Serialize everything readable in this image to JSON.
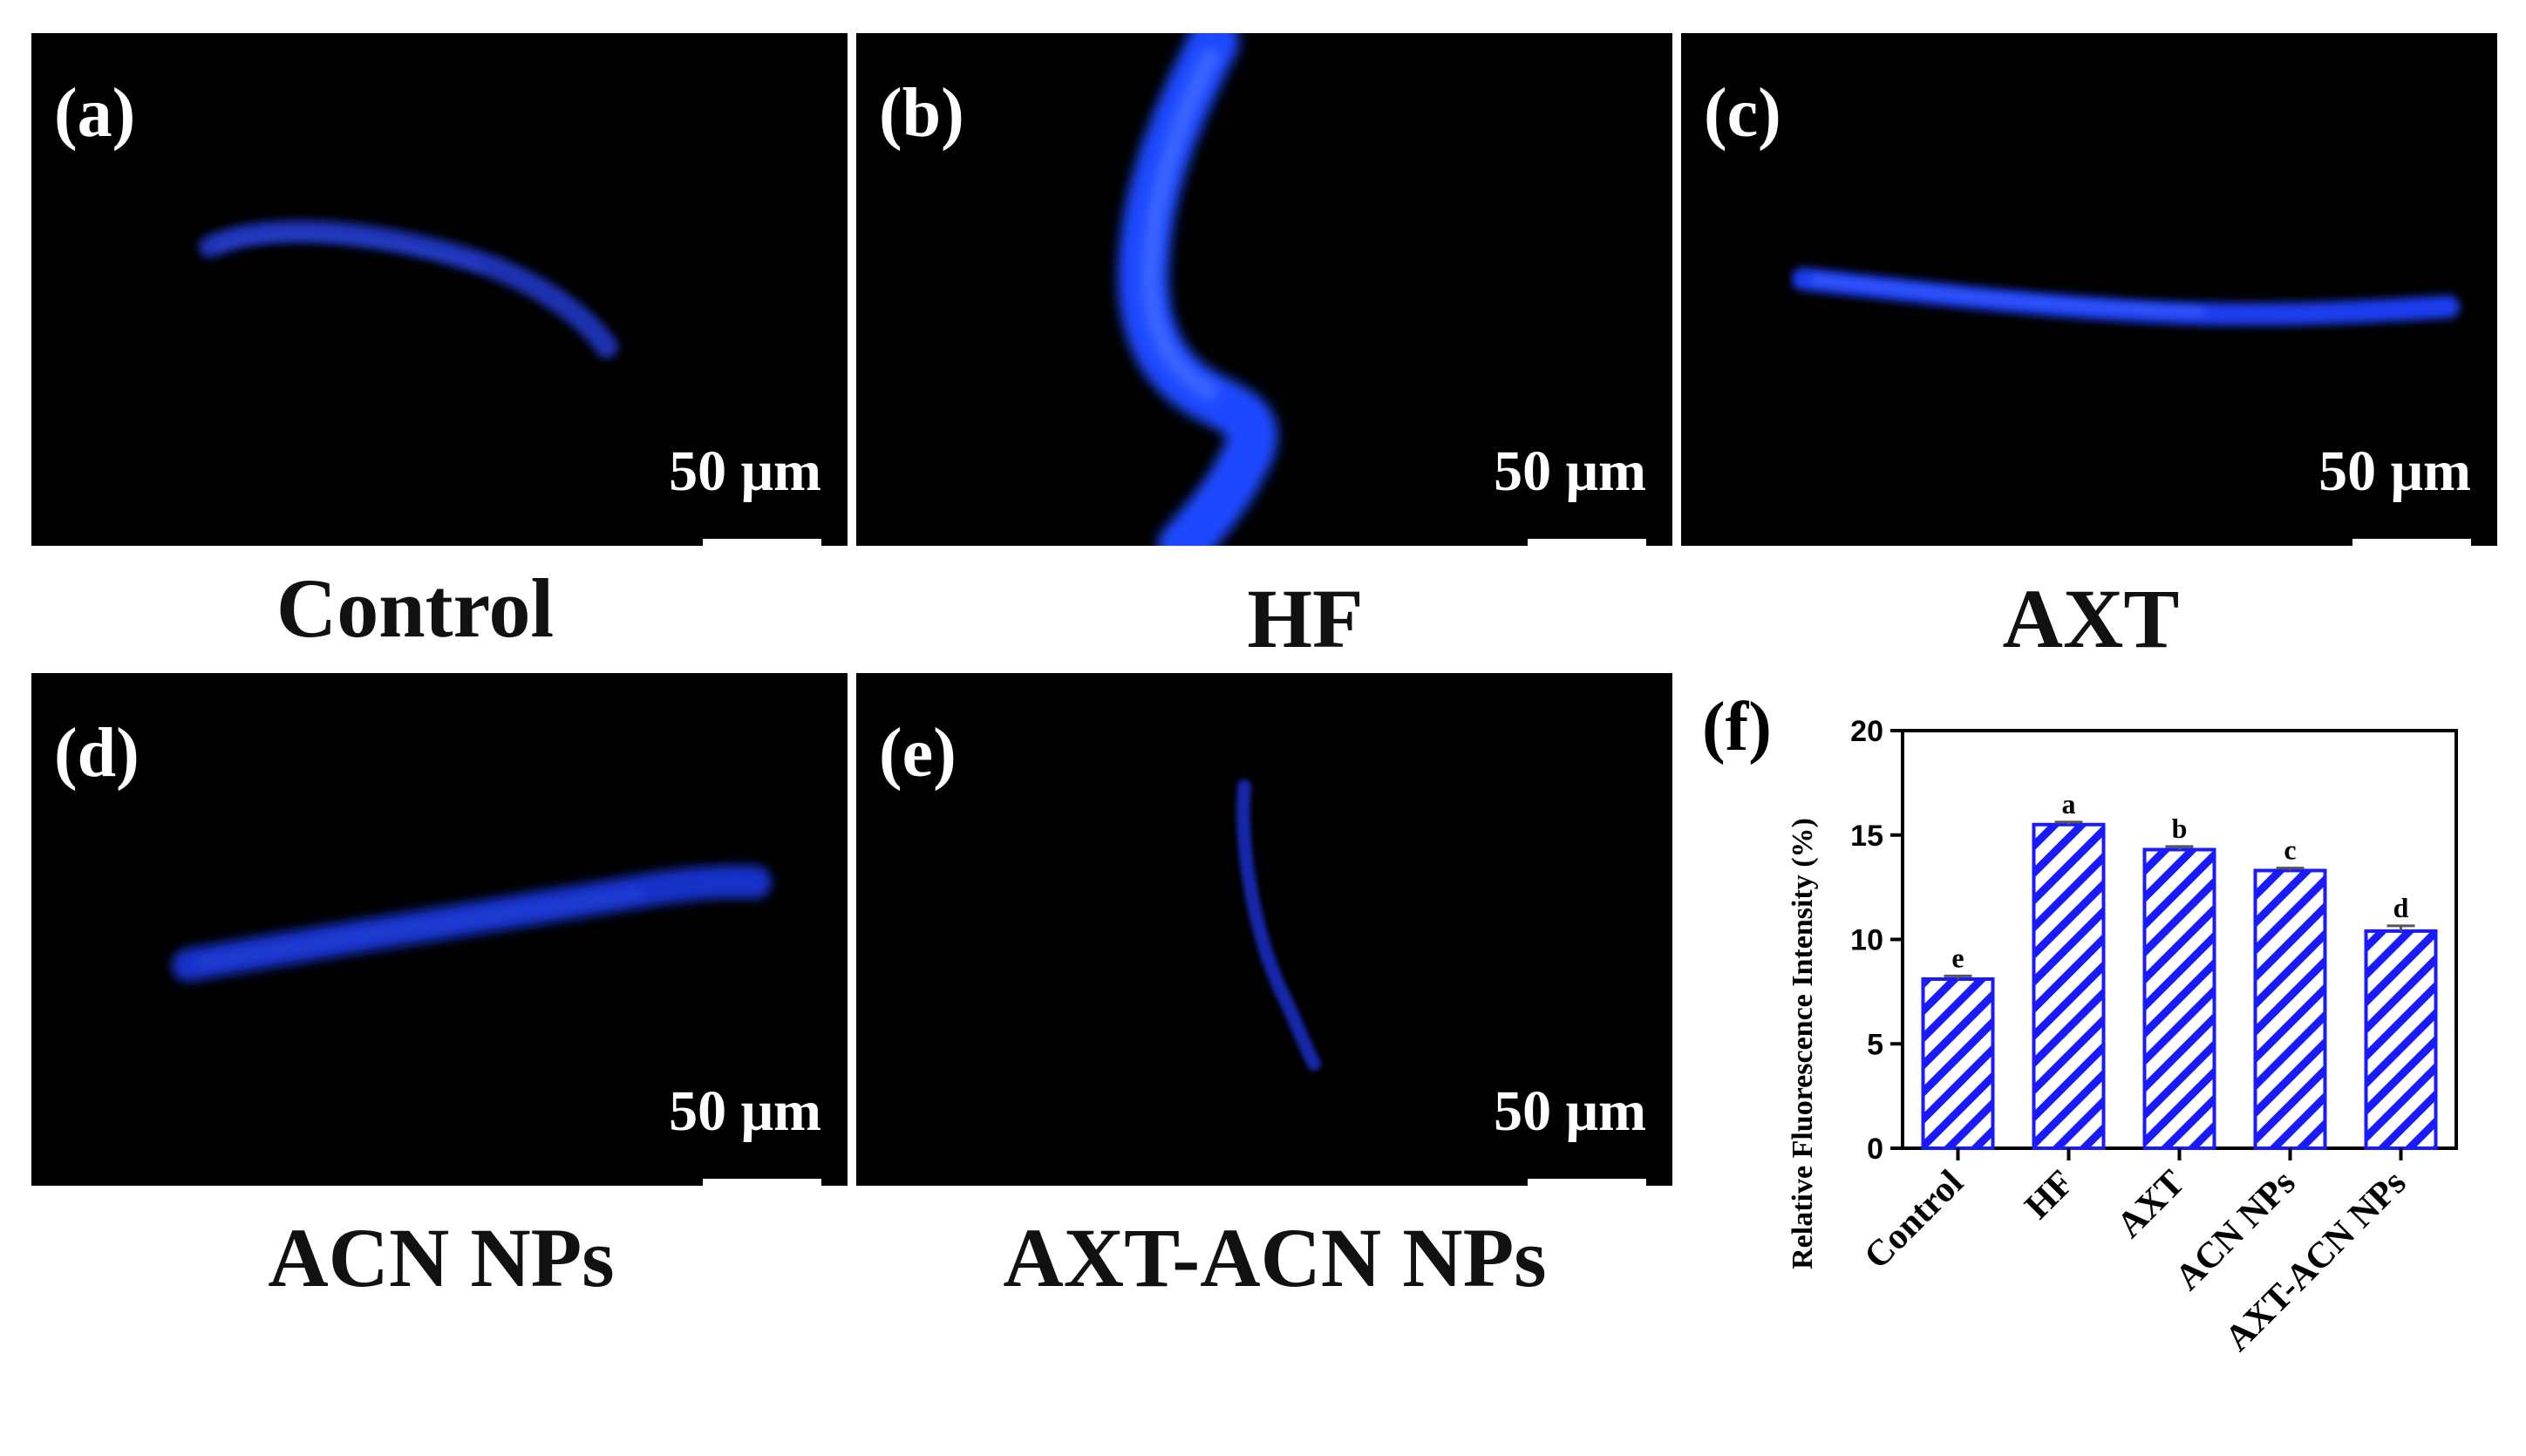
{
  "panels": [
    {
      "label": "(a)",
      "caption": "Control",
      "scale": "50 μm"
    },
    {
      "label": "(b)",
      "caption": "HF",
      "scale": "50 μm"
    },
    {
      "label": "(c)",
      "caption": "AXT",
      "scale": "50 μm"
    },
    {
      "label": "(d)",
      "caption": "ACN NPs",
      "scale": "50 μm"
    },
    {
      "label": "(e)",
      "caption": "AXT-ACN NPs",
      "scale": "50 μm"
    }
  ],
  "chart_data": {
    "panel_label": "(f)",
    "type": "bar",
    "categories": [
      "Control",
      "HF",
      "AXT",
      "ACN NPs",
      "AXT-ACN NPs"
    ],
    "values": [
      8.1,
      15.5,
      14.3,
      13.3,
      10.4
    ],
    "errors": [
      0.15,
      0.12,
      0.15,
      0.12,
      0.25
    ],
    "significance_letters": [
      "e",
      "a",
      "b",
      "c",
      "d"
    ],
    "ylabel": "Relative Fluorescence Intensity (%)",
    "xlabel": "",
    "ylim": [
      0,
      20
    ],
    "yticks": [
      0,
      5,
      10,
      15,
      20
    ],
    "bar_color": "#1a1aff",
    "fill_pattern": "diagonal-hatch",
    "grid": false
  }
}
